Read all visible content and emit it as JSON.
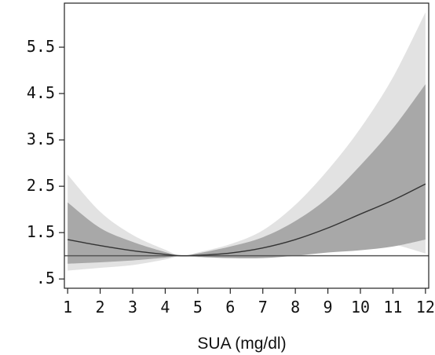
{
  "chart_data": {
    "type": "line",
    "title": "",
    "xlabel": "SUA (mg/dl)",
    "ylabel": "",
    "xlim": [
      0.9,
      12.1
    ],
    "ylim": [
      0.3,
      6.45
    ],
    "x_ticks": [
      1,
      2,
      3,
      4,
      5,
      6,
      7,
      8,
      9,
      10,
      11,
      12
    ],
    "y_ticks": [
      {
        "value": 0.5,
        "label": ".5"
      },
      {
        "value": 1.5,
        "label": "1.5"
      },
      {
        "value": 2.5,
        "label": "2.5"
      },
      {
        "value": 3.5,
        "label": "3.5"
      },
      {
        "value": 4.5,
        "label": "4.5"
      },
      {
        "value": 5.5,
        "label": "5.5"
      }
    ],
    "grid": false,
    "reference_line_y": 1.0,
    "x": [
      1,
      2,
      3,
      4,
      4.5,
      5,
      6,
      7,
      8,
      9,
      10,
      11,
      12
    ],
    "series": [
      {
        "role": "estimate",
        "color": "#333333",
        "values": [
          1.35,
          1.22,
          1.11,
          1.03,
          1.0,
          1.01,
          1.06,
          1.17,
          1.35,
          1.6,
          1.9,
          2.2,
          2.55
        ]
      },
      {
        "role": "inner_band",
        "color": "#a8a8a8",
        "lower": [
          0.83,
          0.86,
          0.9,
          0.96,
          1.0,
          0.98,
          0.95,
          0.95,
          1.0,
          1.07,
          1.12,
          1.2,
          1.35
        ],
        "upper": [
          2.15,
          1.6,
          1.3,
          1.08,
          1.0,
          1.05,
          1.2,
          1.4,
          1.75,
          2.25,
          2.95,
          3.75,
          4.7
        ]
      },
      {
        "role": "outer_band",
        "color": "#e2e2e2",
        "lower": [
          0.68,
          0.74,
          0.8,
          0.92,
          1.0,
          0.97,
          0.95,
          1.02,
          1.15,
          1.28,
          1.35,
          1.25,
          1.05
        ],
        "upper": [
          2.75,
          1.95,
          1.45,
          1.13,
          1.0,
          1.07,
          1.25,
          1.55,
          2.1,
          2.85,
          3.75,
          4.85,
          6.25
        ]
      }
    ]
  }
}
